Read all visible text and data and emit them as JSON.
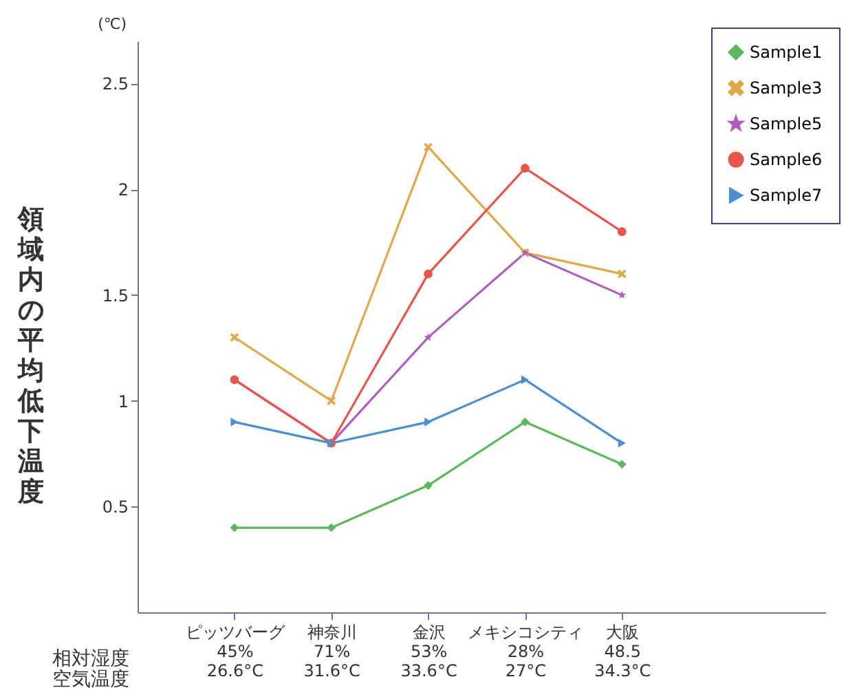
{
  "chart_data": {
    "type": "line",
    "ylabel": "領域内の平均低下温度",
    "categories": [
      "ピッツバーグ\n45%\n26.6°C",
      "神奈川\n71%\n31.6°C",
      "金沢\n53%\n33.6°C",
      "メキシコシティ\n28%\n27°C",
      "大阪\n48.5\n34.3°C"
    ],
    "series": [
      {
        "name": "Sample1",
        "color": "#5cb85c",
        "marker": "diamond",
        "values": [
          0.4,
          0.4,
          0.6,
          0.9,
          0.7
        ]
      },
      {
        "name": "Sample3",
        "color": "#e0a84a",
        "marker": "cross",
        "values": [
          1.3,
          1.0,
          2.2,
          1.7,
          1.6
        ]
      },
      {
        "name": "Sample5",
        "color": "#b05cc0",
        "marker": "star",
        "values": [
          1.1,
          0.8,
          1.3,
          1.7,
          1.5
        ]
      },
      {
        "name": "Sample6",
        "color": "#e8554a",
        "marker": "circle",
        "values": [
          1.1,
          0.8,
          1.6,
          2.1,
          1.8
        ]
      },
      {
        "name": "Sample7",
        "color": "#4a90d0",
        "marker": "triangle",
        "values": [
          0.9,
          0.8,
          0.9,
          1.1,
          0.8
        ]
      }
    ],
    "ylim": [
      0,
      2.7
    ],
    "yticks": [
      0.5,
      1,
      1.5,
      2,
      2.5
    ],
    "annotations": [
      "(℃)",
      "相対湿度",
      "空気温度"
    ],
    "grid": false,
    "legend": "top right",
    "line_style": "solid"
  }
}
